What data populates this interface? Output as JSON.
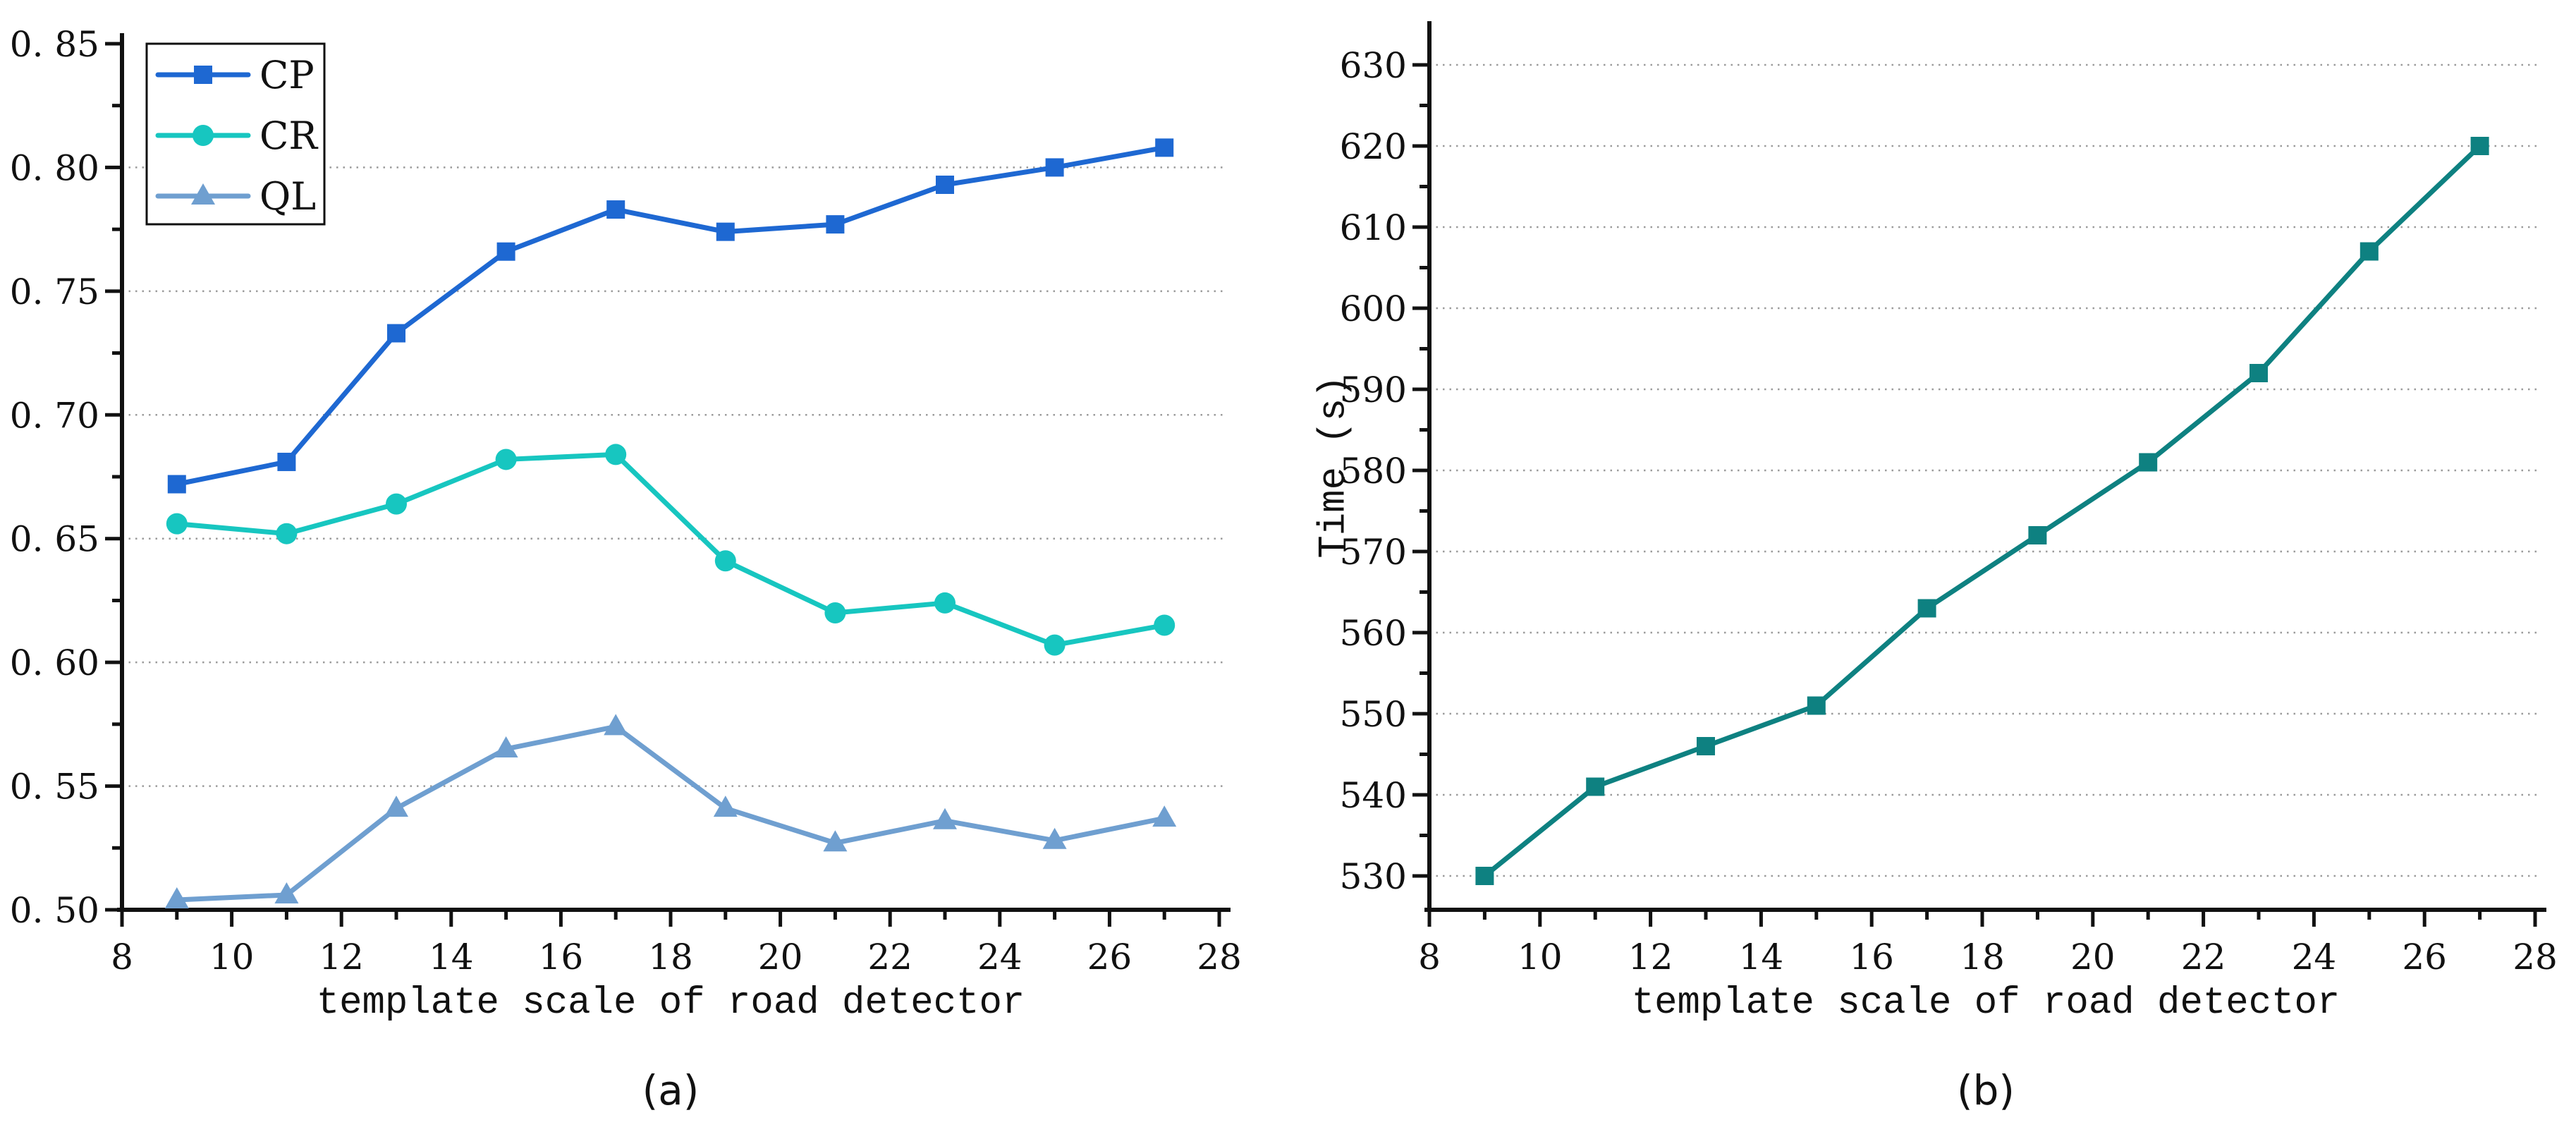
{
  "figure": {
    "background": "#ffffff",
    "grid_color": "#9b9b9b",
    "axis_color": "#111111"
  },
  "chart_data": [
    {
      "id": "a",
      "type": "line",
      "caption": "(a)",
      "xlabel": "template scale of road detector",
      "ylabel": "",
      "xlim": [
        8,
        28.2
      ],
      "ylim": [
        0.5,
        0.852
      ],
      "grid": "dotted-horizontal",
      "legend_position": "top-left",
      "x": [
        9,
        11,
        13,
        15,
        17,
        19,
        21,
        23,
        25,
        27
      ],
      "series": [
        {
          "name": "CP",
          "marker": "square",
          "color": "#1e68d2",
          "values": [
            0.672,
            0.681,
            0.733,
            0.766,
            0.783,
            0.774,
            0.777,
            0.793,
            0.8,
            0.808
          ]
        },
        {
          "name": "CR",
          "marker": "circle",
          "color": "#17c6c0",
          "values": [
            0.656,
            0.652,
            0.664,
            0.682,
            0.684,
            0.641,
            0.62,
            0.624,
            0.607,
            0.615
          ]
        },
        {
          "name": "QL",
          "marker": "triangle",
          "color": "#6f9fd0",
          "values": [
            0.504,
            0.506,
            0.541,
            0.565,
            0.574,
            0.541,
            0.527,
            0.536,
            0.528,
            0.537
          ]
        }
      ],
      "axes": {
        "xticks": [
          8,
          10,
          12,
          14,
          16,
          18,
          20,
          22,
          24,
          26,
          28
        ],
        "xtick_labels": [
          "8",
          "10",
          "12",
          "14",
          "16",
          "18",
          "20",
          "22",
          "24",
          "26",
          "28"
        ],
        "xminor": [
          9,
          11,
          13,
          15,
          17,
          19,
          21,
          23,
          25,
          27
        ],
        "yticks": [
          0.5,
          0.55,
          0.6,
          0.65,
          0.7,
          0.75,
          0.8,
          0.85
        ],
        "ytick_labels": [
          "0. 50",
          "0. 55",
          "0. 60",
          "0. 65",
          "0. 70",
          "0. 75",
          "0. 80",
          "0. 85"
        ],
        "yminor": [
          0.525,
          0.575,
          0.625,
          0.675,
          0.725,
          0.775,
          0.825
        ],
        "grid_y": [
          0.55,
          0.6,
          0.65,
          0.7,
          0.75,
          0.8
        ]
      }
    },
    {
      "id": "b",
      "type": "line",
      "caption": "(b)",
      "xlabel": "template scale of road detector",
      "ylabel": "Time (s)",
      "xlim": [
        8,
        28.2
      ],
      "ylim": [
        526,
        635
      ],
      "grid": "dotted-horizontal",
      "legend_position": "none",
      "x": [
        9,
        11,
        13,
        15,
        17,
        19,
        21,
        23,
        25,
        27
      ],
      "series": [
        {
          "name": "Time",
          "marker": "square",
          "color": "#0e8181",
          "values": [
            530,
            541,
            546,
            551,
            563,
            572,
            581,
            592,
            607,
            620
          ]
        }
      ],
      "axes": {
        "xticks": [
          8,
          10,
          12,
          14,
          16,
          18,
          20,
          22,
          24,
          26,
          28
        ],
        "xtick_labels": [
          "8",
          "10",
          "12",
          "14",
          "16",
          "18",
          "20",
          "22",
          "24",
          "26",
          "28"
        ],
        "xminor": [
          9,
          11,
          13,
          15,
          17,
          19,
          21,
          23,
          25,
          27
        ],
        "yticks": [
          530,
          540,
          550,
          560,
          570,
          580,
          590,
          600,
          610,
          620,
          630
        ],
        "ytick_labels": [
          "530",
          "540",
          "550",
          "560",
          "570",
          "580",
          "590",
          "600",
          "610",
          "620",
          "630"
        ],
        "yminor": [
          535,
          545,
          555,
          565,
          575,
          585,
          595,
          605,
          615,
          625
        ],
        "grid_y": [
          530,
          540,
          550,
          560,
          570,
          580,
          590,
          600,
          610,
          620,
          630
        ]
      }
    }
  ]
}
